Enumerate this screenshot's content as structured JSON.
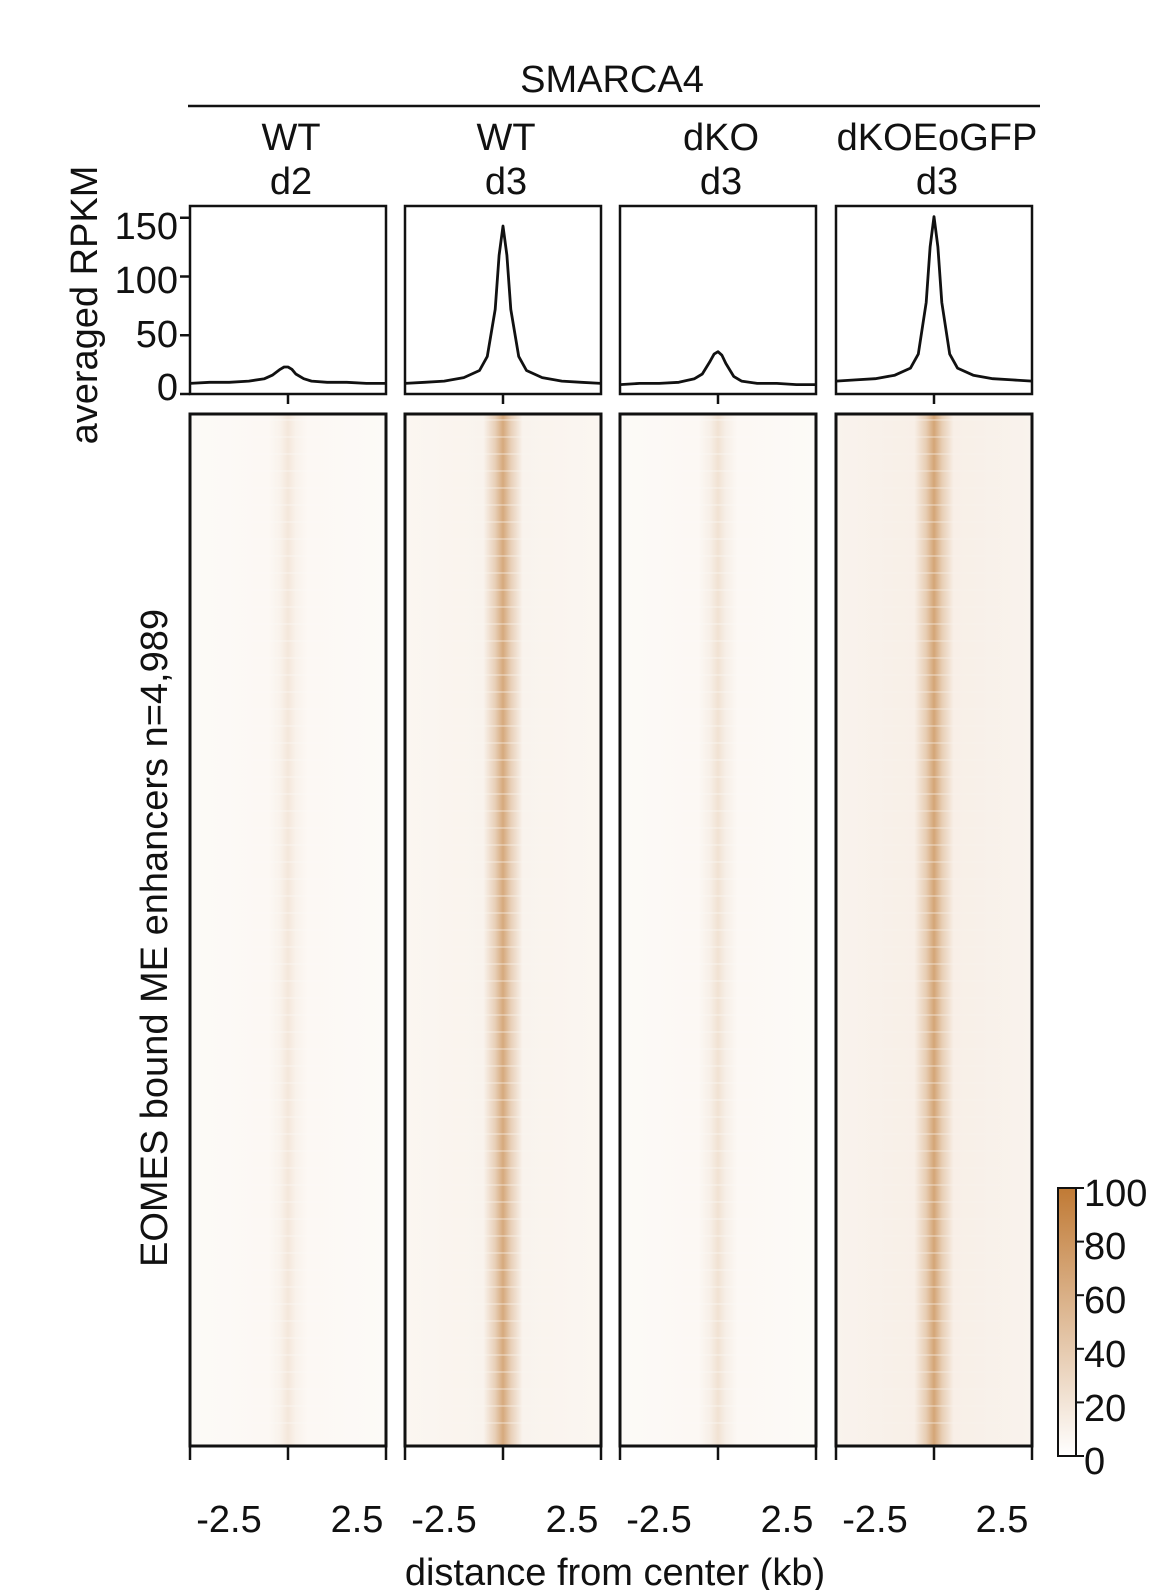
{
  "chart_data": {
    "type": "heatmap",
    "group_label": "SMARCA4",
    "profile_ylabel": "averaged RPKM",
    "heatmap_ylabel": "EOMES bound ME enhancers n=4,989",
    "xlabel": "distance from center (kb)",
    "x_tick_labels": [
      "-2.5",
      "2.5"
    ],
    "xlim": [
      -2.5,
      2.5
    ],
    "profile_ylim": [
      0,
      160
    ],
    "profile_yticks": [
      0,
      50,
      100,
      150
    ],
    "profile_ytick_labels": [
      "0",
      "50",
      "100",
      "150"
    ],
    "colorbar": {
      "ticks": [
        0,
        20,
        40,
        60,
        80,
        100
      ],
      "tick_labels": [
        "0",
        "20",
        "40",
        "60",
        "80",
        "100"
      ],
      "range": [
        0,
        100
      ],
      "low_color": "#ffffff",
      "high_color": "#c07a35"
    },
    "samples": [
      {
        "line1": "WT",
        "line2": "d2",
        "profile_x": [
          -2.5,
          -2.0,
          -1.5,
          -1.0,
          -0.6,
          -0.4,
          -0.2,
          -0.1,
          0,
          0.1,
          0.2,
          0.4,
          0.6,
          1.0,
          1.5,
          2.0,
          2.5
        ],
        "profile_y": [
          9,
          10,
          10,
          11,
          13,
          16,
          21,
          23,
          23,
          21,
          17,
          13,
          11,
          10,
          10,
          9,
          9
        ],
        "heat_peak": 18,
        "heat_background": 4
      },
      {
        "line1": "WT",
        "line2": "d3",
        "profile_x": [
          -2.5,
          -2.0,
          -1.5,
          -1.0,
          -0.6,
          -0.4,
          -0.2,
          -0.1,
          0,
          0.1,
          0.2,
          0.4,
          0.6,
          1.0,
          1.5,
          2.0,
          2.5
        ],
        "profile_y": [
          9,
          10,
          11,
          14,
          20,
          32,
          72,
          118,
          143,
          118,
          72,
          32,
          20,
          14,
          11,
          10,
          9
        ],
        "heat_peak": 65,
        "heat_background": 7
      },
      {
        "line1": "dKO",
        "line2": "d3",
        "profile_x": [
          -2.5,
          -2.0,
          -1.5,
          -1.0,
          -0.6,
          -0.4,
          -0.2,
          -0.1,
          0,
          0.1,
          0.2,
          0.4,
          0.6,
          1.0,
          1.5,
          2.0,
          2.5
        ],
        "profile_y": [
          8,
          9,
          9,
          10,
          13,
          17,
          28,
          34,
          36,
          33,
          26,
          15,
          11,
          9,
          9,
          8,
          8
        ],
        "heat_peak": 22,
        "heat_background": 4
      },
      {
        "line1": "dKOEoGFP",
        "line2": "d3",
        "profile_x": [
          -2.5,
          -2.0,
          -1.5,
          -1.0,
          -0.6,
          -0.4,
          -0.2,
          -0.1,
          0,
          0.1,
          0.2,
          0.4,
          0.6,
          1.0,
          1.5,
          2.0,
          2.5
        ],
        "profile_y": [
          11,
          12,
          13,
          16,
          22,
          34,
          78,
          125,
          151,
          125,
          78,
          34,
          22,
          16,
          13,
          12,
          11
        ],
        "heat_peak": 68,
        "heat_background": 9
      }
    ]
  }
}
